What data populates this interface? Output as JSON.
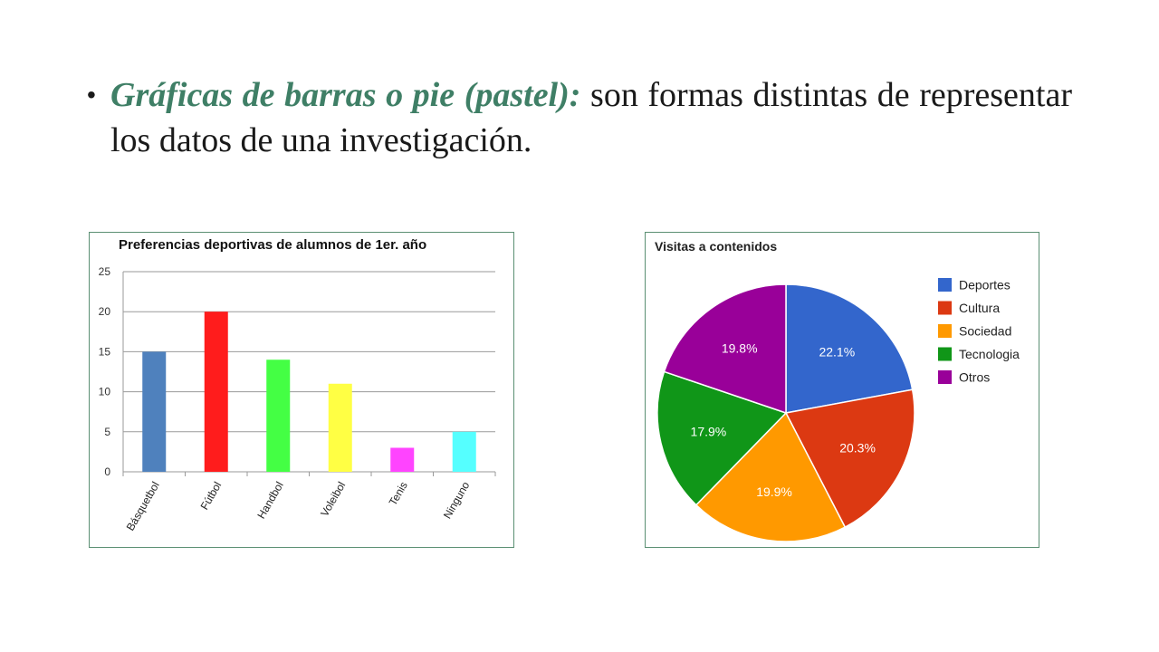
{
  "bullet": {
    "lead": "Gráficas de barras o pie (pastel):",
    "text": " son formas distintas de representar los datos de una investigación."
  },
  "chart_data": [
    {
      "type": "bar",
      "title": "Preferencias deportivas de alumnos de 1er. año",
      "categories": [
        "Básquetbol",
        "Fútbol",
        "Handbol",
        "Voleibol",
        "Tenis",
        "Ninguno"
      ],
      "values": [
        15,
        20,
        14,
        11,
        3,
        5
      ],
      "colors": [
        "#4f81bd",
        "#ff1c1c",
        "#44ff44",
        "#ffff44",
        "#ff44ff",
        "#55ffff"
      ],
      "ylim": [
        0,
        25
      ],
      "yticks": [
        0,
        5,
        10,
        15,
        20,
        25
      ],
      "xlabel": "",
      "ylabel": "",
      "grid": true
    },
    {
      "type": "pie",
      "title": "Visitas a contenidos",
      "labels": [
        "Deportes",
        "Cultura",
        "Sociedad",
        "Tecnologia",
        "Otros"
      ],
      "values": [
        22.1,
        20.3,
        19.9,
        17.9,
        19.8
      ],
      "value_labels": [
        "22.1%",
        "20.3%",
        "19.9%",
        "17.9%",
        "19.8%"
      ],
      "colors": [
        "#3366cc",
        "#dc3912",
        "#ff9900",
        "#109618",
        "#990099"
      ],
      "legend": "right"
    }
  ]
}
